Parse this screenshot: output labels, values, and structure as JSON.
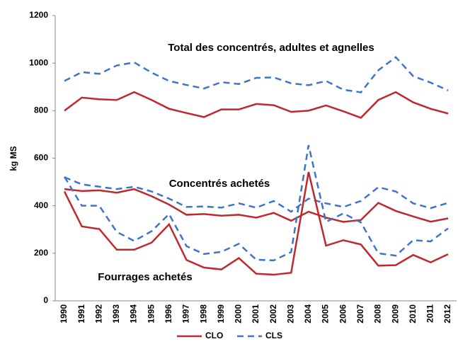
{
  "chart_data": {
    "type": "line",
    "y_label": "kg MS",
    "annotations": [
      "Total des concentrés, adultes et agnelles",
      "Concentrés achetés",
      "Fourrages achetés"
    ],
    "categories": [
      "1990",
      "1991",
      "1992",
      "1993",
      "1994",
      "1995",
      "1996",
      "1997",
      "1998",
      "1999",
      "2000",
      "2001",
      "2002",
      "2003",
      "2004",
      "2005",
      "2006",
      "2007",
      "2008",
      "2009",
      "2010",
      "2011",
      "2012"
    ],
    "ylim": [
      0,
      1200
    ],
    "yticks": [
      0,
      200,
      400,
      600,
      800,
      1000,
      1200
    ],
    "series": [
      {
        "name": "CLO",
        "color": "#c0282e",
        "dashed": false,
        "values": [
          800,
          855,
          848,
          845,
          878,
          845,
          808,
          790,
          773,
          805,
          805,
          828,
          823,
          795,
          800,
          822,
          797,
          770,
          845,
          878,
          835,
          808,
          788
        ]
      },
      {
        "name": "CLS",
        "color": "#3e75c8",
        "dashed": true,
        "values": [
          925,
          962,
          955,
          990,
          1003,
          960,
          925,
          908,
          893,
          920,
          912,
          938,
          940,
          915,
          907,
          925,
          888,
          877,
          970,
          1025,
          945,
          918,
          885
        ]
      },
      {
        "name": "CLO",
        "color": "#c0282e",
        "dashed": false,
        "values": [
          470,
          462,
          465,
          455,
          470,
          440,
          405,
          362,
          365,
          358,
          362,
          350,
          370,
          337,
          375,
          350,
          332,
          340,
          412,
          378,
          355,
          333,
          347
        ]
      },
      {
        "name": "CLS",
        "color": "#3e75c8",
        "dashed": true,
        "values": [
          520,
          490,
          480,
          470,
          480,
          460,
          430,
          395,
          397,
          392,
          410,
          392,
          420,
          375,
          430,
          410,
          395,
          420,
          478,
          460,
          410,
          390,
          412
        ]
      },
      {
        "name": "CLO",
        "color": "#c0282e",
        "dashed": false,
        "values": [
          460,
          313,
          302,
          215,
          215,
          245,
          322,
          172,
          140,
          132,
          180,
          114,
          110,
          118,
          542,
          232,
          255,
          237,
          148,
          150,
          193,
          162,
          196
        ]
      },
      {
        "name": "CLS",
        "color": "#3e75c8",
        "dashed": true,
        "values": [
          522,
          400,
          400,
          290,
          252,
          293,
          365,
          230,
          197,
          206,
          240,
          173,
          170,
          205,
          655,
          332,
          368,
          330,
          200,
          190,
          255,
          250,
          305
        ]
      }
    ]
  }
}
